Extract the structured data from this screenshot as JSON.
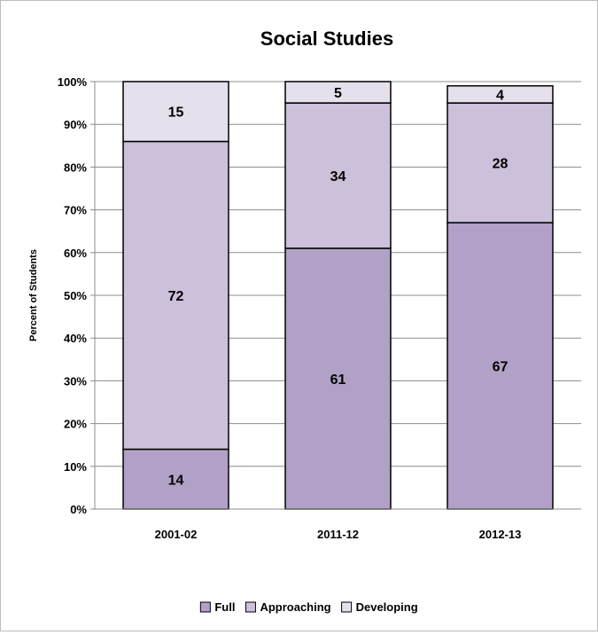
{
  "chart_data": {
    "type": "bar",
    "stacked": true,
    "title": "Social Studies",
    "ylabel": "Percent of Students",
    "xlabel": "",
    "ylim": [
      0,
      100
    ],
    "ytick_values": [
      0,
      10,
      20,
      30,
      40,
      50,
      60,
      70,
      80,
      90,
      100
    ],
    "ytick_labels": [
      "0%",
      "10%",
      "20%",
      "30%",
      "40%",
      "50%",
      "60%",
      "70%",
      "80%",
      "90%",
      "100%"
    ],
    "grid": true,
    "legend_position": "bottom",
    "categories": [
      "2001-02",
      "2011-12",
      "2012-13"
    ],
    "series": [
      {
        "name": "Full",
        "values": [
          14,
          61,
          67
        ],
        "color": "#b2a1c7"
      },
      {
        "name": "Approaching",
        "values": [
          72,
          34,
          28
        ],
        "color": "#ccc0da"
      },
      {
        "name": "Developing",
        "values": [
          15,
          5,
          4
        ],
        "color": "#e6e0ec"
      }
    ]
  }
}
